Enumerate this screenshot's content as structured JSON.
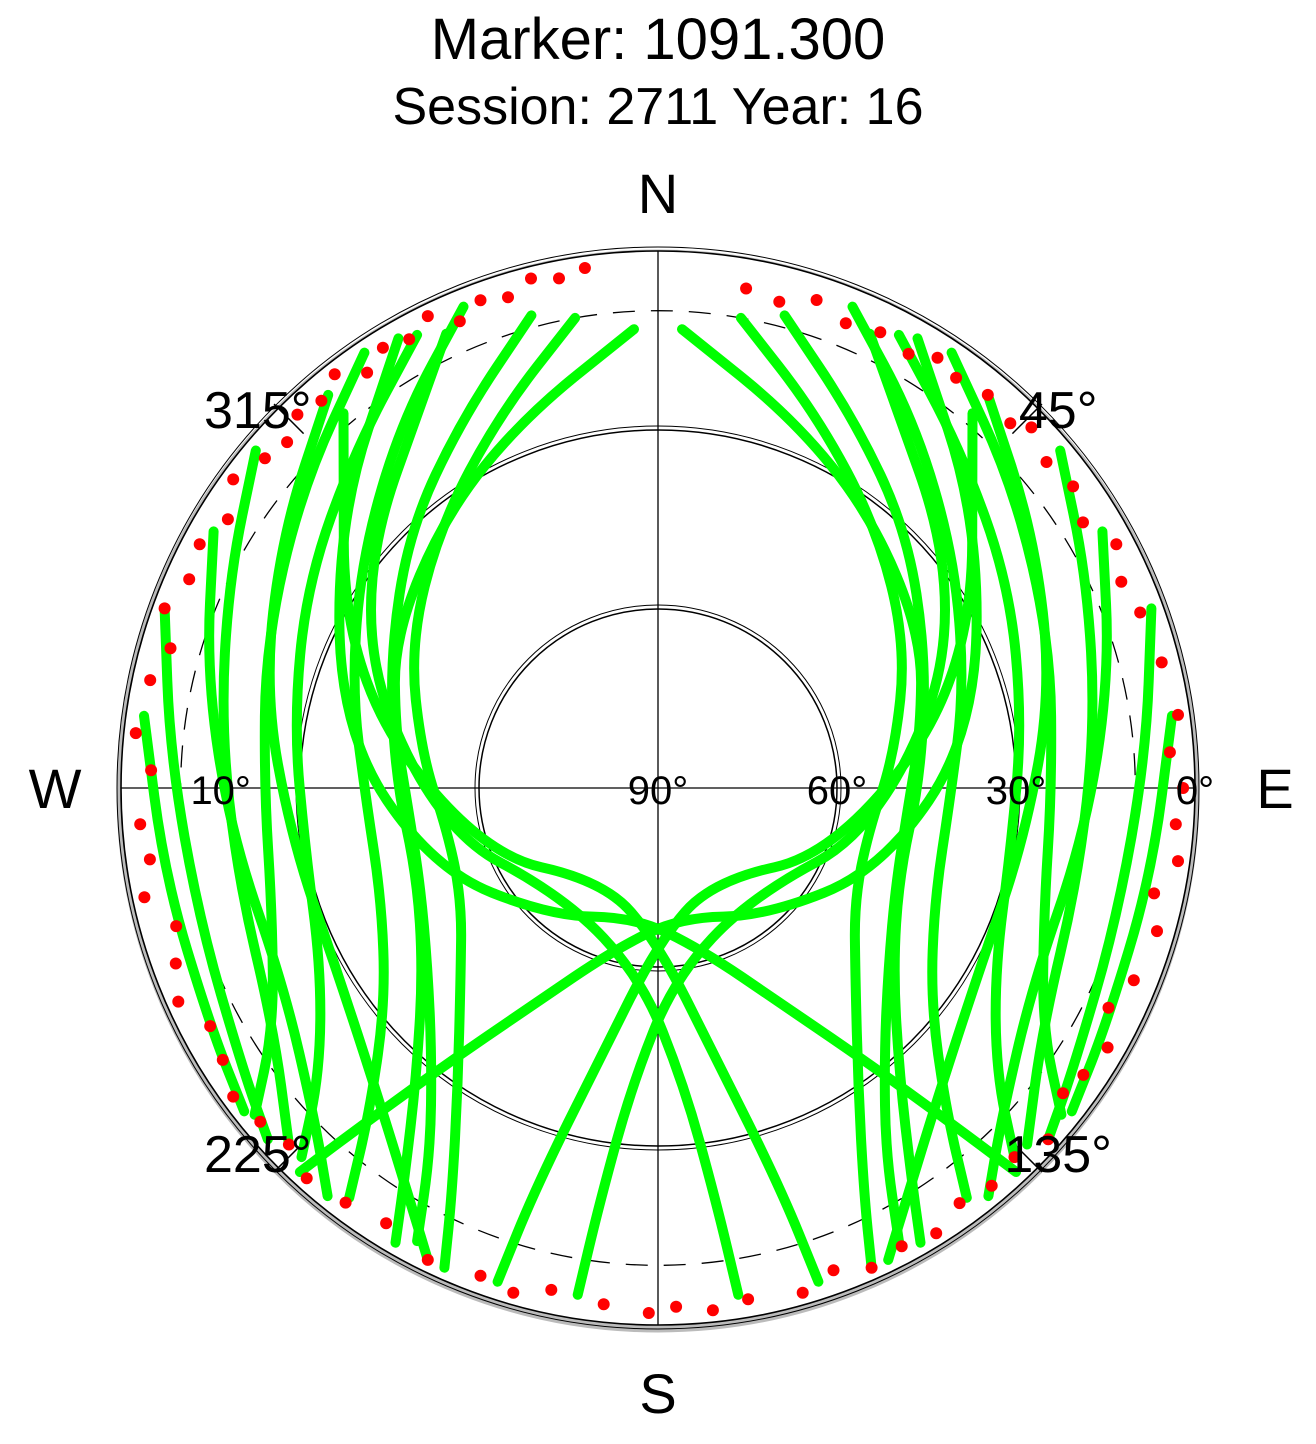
{
  "title": "Marker: 1091.300",
  "subtitle": "Session: 2711 Year: 16",
  "chart_data": {
    "type": "scatter",
    "projection": "polar-skyplot",
    "compass": {
      "north": "N",
      "east": "E",
      "south": "S",
      "west": "W"
    },
    "azimuth_labels": [
      {
        "az": 45,
        "text": "45°"
      },
      {
        "az": 135,
        "text": "135°"
      },
      {
        "az": 225,
        "text": "225°"
      },
      {
        "az": 315,
        "text": "315°"
      }
    ],
    "elevation_labels": [
      {
        "el": 90,
        "text": "90°"
      },
      {
        "el": 60,
        "text": "60°"
      },
      {
        "el": 30,
        "text": "30°"
      },
      {
        "el": 0,
        "text": "0°"
      },
      {
        "el": 10,
        "text": "10°"
      }
    ],
    "elevation_circles": [
      60,
      30,
      0
    ],
    "cutoff_elevation_dashed": 10,
    "colors": {
      "track": "#00ff00",
      "low": "#ff0000",
      "axis": "#000000",
      "shade": "#bbbbbb"
    },
    "series": [
      {
        "color": "#00ff00",
        "points": [
          [
            357,
            13
          ],
          [
            340,
            24
          ],
          [
            322,
            32
          ],
          [
            300,
            39
          ],
          [
            282,
            45
          ],
          [
            265,
            48
          ],
          [
            248,
            47
          ],
          [
            232,
            41
          ],
          [
            220,
            31
          ],
          [
            212,
            18
          ],
          [
            208,
            4
          ]
        ]
      },
      {
        "color": "#00ff00",
        "points": [
          [
            350,
            10
          ],
          [
            337,
            22
          ],
          [
            320,
            33
          ],
          [
            300,
            42
          ],
          [
            278,
            50
          ],
          [
            258,
            54
          ],
          [
            240,
            52
          ],
          [
            226,
            44
          ],
          [
            214,
            30
          ],
          [
            207,
            14
          ],
          [
            204,
            2
          ]
        ]
      },
      {
        "color": "#00ff00",
        "points": [
          [
            345,
            8
          ],
          [
            332,
            20
          ],
          [
            316,
            30
          ],
          [
            296,
            40
          ],
          [
            272,
            46
          ],
          [
            250,
            47
          ],
          [
            232,
            40
          ],
          [
            220,
            27
          ],
          [
            213,
            12
          ],
          [
            210,
            2
          ]
        ]
      },
      {
        "color": "#00ff00",
        "points": [
          [
            338,
            3
          ],
          [
            325,
            15
          ],
          [
            308,
            27
          ],
          [
            288,
            36
          ],
          [
            268,
            41
          ],
          [
            248,
            40
          ],
          [
            232,
            32
          ],
          [
            222,
            18
          ],
          [
            217,
            4
          ]
        ]
      },
      {
        "color": "#00ff00",
        "points": [
          [
            332,
            4
          ],
          [
            318,
            14
          ],
          [
            300,
            22
          ],
          [
            280,
            28
          ],
          [
            260,
            30
          ],
          [
            242,
            26
          ],
          [
            230,
            16
          ],
          [
            224,
            4
          ]
        ]
      },
      {
        "color": "#00ff00",
        "points": [
          [
            326,
            2
          ],
          [
            310,
            12
          ],
          [
            290,
            20
          ],
          [
            270,
            24
          ],
          [
            252,
            22
          ],
          [
            238,
            14
          ],
          [
            231,
            3
          ]
        ]
      },
      {
        "color": "#00ff00",
        "points": [
          [
            320,
            4
          ],
          [
            304,
            14
          ],
          [
            284,
            22
          ],
          [
            262,
            28
          ],
          [
            240,
            28
          ],
          [
            222,
            20
          ],
          [
            210,
            8
          ],
          [
            206,
            2
          ]
        ]
      },
      {
        "color": "#00ff00",
        "points": [
          [
            310,
            2
          ],
          [
            296,
            10
          ],
          [
            278,
            16
          ],
          [
            258,
            18
          ],
          [
            238,
            14
          ],
          [
            226,
            4
          ]
        ]
      },
      {
        "color": "#00ff00",
        "points": [
          [
            300,
            4
          ],
          [
            284,
            12
          ],
          [
            264,
            18
          ],
          [
            242,
            19
          ],
          [
            226,
            10
          ],
          [
            219,
            2
          ]
        ]
      },
      {
        "color": "#00ff00",
        "points": [
          [
            290,
            2
          ],
          [
            274,
            8
          ],
          [
            254,
            10
          ],
          [
            236,
            6
          ],
          [
            228,
            2
          ]
        ]
      },
      {
        "color": "#00ff00",
        "points": [
          [
            278,
            3
          ],
          [
            260,
            6
          ],
          [
            242,
            5
          ],
          [
            232,
            2
          ]
        ]
      },
      {
        "color": "#00ff00",
        "points": [
          [
            3,
            13
          ],
          [
            20,
            24
          ],
          [
            38,
            32
          ],
          [
            60,
            39
          ],
          [
            78,
            45
          ],
          [
            95,
            48
          ],
          [
            112,
            47
          ],
          [
            128,
            41
          ],
          [
            140,
            31
          ],
          [
            148,
            18
          ],
          [
            152,
            4
          ]
        ]
      },
      {
        "color": "#00ff00",
        "points": [
          [
            10,
            10
          ],
          [
            23,
            22
          ],
          [
            40,
            33
          ],
          [
            60,
            42
          ],
          [
            82,
            50
          ],
          [
            102,
            54
          ],
          [
            120,
            52
          ],
          [
            134,
            44
          ],
          [
            146,
            30
          ],
          [
            153,
            14
          ],
          [
            156,
            2
          ]
        ]
      },
      {
        "color": "#00ff00",
        "points": [
          [
            15,
            8
          ],
          [
            28,
            20
          ],
          [
            44,
            30
          ],
          [
            64,
            40
          ],
          [
            88,
            46
          ],
          [
            110,
            47
          ],
          [
            128,
            40
          ],
          [
            140,
            27
          ],
          [
            147,
            12
          ],
          [
            150,
            2
          ]
        ]
      },
      {
        "color": "#00ff00",
        "points": [
          [
            22,
            3
          ],
          [
            35,
            15
          ],
          [
            52,
            27
          ],
          [
            72,
            36
          ],
          [
            92,
            41
          ],
          [
            112,
            40
          ],
          [
            128,
            32
          ],
          [
            138,
            18
          ],
          [
            143,
            4
          ]
        ]
      },
      {
        "color": "#00ff00",
        "points": [
          [
            28,
            4
          ],
          [
            42,
            14
          ],
          [
            60,
            22
          ],
          [
            80,
            28
          ],
          [
            100,
            30
          ],
          [
            118,
            26
          ],
          [
            130,
            16
          ],
          [
            136,
            4
          ]
        ]
      },
      {
        "color": "#00ff00",
        "points": [
          [
            34,
            2
          ],
          [
            50,
            12
          ],
          [
            70,
            20
          ],
          [
            90,
            24
          ],
          [
            108,
            22
          ],
          [
            122,
            14
          ],
          [
            129,
            3
          ]
        ]
      },
      {
        "color": "#00ff00",
        "points": [
          [
            40,
            4
          ],
          [
            56,
            14
          ],
          [
            76,
            22
          ],
          [
            98,
            28
          ],
          [
            120,
            28
          ],
          [
            138,
            20
          ],
          [
            150,
            8
          ],
          [
            154,
            2
          ]
        ]
      },
      {
        "color": "#00ff00",
        "points": [
          [
            50,
            2
          ],
          [
            64,
            10
          ],
          [
            82,
            16
          ],
          [
            102,
            18
          ],
          [
            122,
            14
          ],
          [
            134,
            4
          ]
        ]
      },
      {
        "color": "#00ff00",
        "points": [
          [
            60,
            4
          ],
          [
            76,
            12
          ],
          [
            96,
            18
          ],
          [
            118,
            19
          ],
          [
            134,
            10
          ],
          [
            141,
            2
          ]
        ]
      },
      {
        "color": "#00ff00",
        "points": [
          [
            70,
            2
          ],
          [
            86,
            8
          ],
          [
            106,
            10
          ],
          [
            124,
            6
          ],
          [
            132,
            2
          ]
        ]
      },
      {
        "color": "#00ff00",
        "points": [
          [
            82,
            3
          ],
          [
            100,
            6
          ],
          [
            118,
            5
          ],
          [
            128,
            2
          ]
        ]
      },
      {
        "color": "#00ff00",
        "points": [
          [
            330,
            3
          ],
          [
            310,
            20
          ],
          [
            280,
            36
          ],
          [
            250,
            50
          ],
          [
            220,
            62
          ],
          [
            190,
            68
          ],
          [
            165,
            62
          ],
          [
            150,
            48
          ],
          [
            142,
            30
          ],
          [
            138,
            10
          ],
          [
            137,
            2
          ]
        ]
      },
      {
        "color": "#00ff00",
        "points": [
          [
            30,
            3
          ],
          [
            50,
            20
          ],
          [
            80,
            36
          ],
          [
            110,
            50
          ],
          [
            140,
            62
          ],
          [
            170,
            68
          ],
          [
            195,
            62
          ],
          [
            210,
            48
          ],
          [
            218,
            30
          ],
          [
            222,
            10
          ],
          [
            223,
            2
          ]
        ]
      },
      {
        "color": "#00ff00",
        "points": [
          [
            335,
            6
          ],
          [
            300,
            30
          ],
          [
            260,
            52
          ],
          [
            220,
            66
          ],
          [
            185,
            58
          ],
          [
            175,
            40
          ],
          [
            172,
            20
          ],
          [
            171,
            4
          ]
        ]
      },
      {
        "color": "#00ff00",
        "points": [
          [
            25,
            6
          ],
          [
            60,
            30
          ],
          [
            100,
            52
          ],
          [
            140,
            66
          ],
          [
            175,
            58
          ],
          [
            185,
            40
          ],
          [
            188,
            20
          ],
          [
            189,
            4
          ]
        ]
      },
      {
        "color": "#00ff00",
        "points": [
          [
            320,
            8
          ],
          [
            290,
            34
          ],
          [
            250,
            58
          ],
          [
            210,
            72
          ],
          [
            180,
            64
          ],
          [
            168,
            44
          ],
          [
            163,
            20
          ],
          [
            162,
            3
          ]
        ]
      },
      {
        "color": "#00ff00",
        "points": [
          [
            40,
            8
          ],
          [
            70,
            34
          ],
          [
            110,
            58
          ],
          [
            150,
            72
          ],
          [
            180,
            64
          ],
          [
            192,
            44
          ],
          [
            197,
            20
          ],
          [
            198,
            3
          ]
        ]
      }
    ],
    "low_points": [
      [
        352,
        2
      ],
      [
        349,
        3
      ],
      [
        346,
        2
      ],
      [
        343,
        4
      ],
      [
        340,
        3
      ],
      [
        337,
        5
      ],
      [
        334,
        2
      ],
      [
        331,
        4
      ],
      [
        328,
        3
      ],
      [
        325,
        5
      ],
      [
        322,
        2
      ],
      [
        319,
        4
      ],
      [
        316,
        3
      ],
      [
        313,
        5
      ],
      [
        310,
        4
      ],
      [
        306,
        2
      ],
      [
        302,
        5
      ],
      [
        298,
        3
      ],
      [
        294,
        4
      ],
      [
        290,
        2
      ],
      [
        286,
        5
      ],
      [
        282,
        3
      ],
      [
        276,
        2
      ],
      [
        272,
        5
      ],
      [
        266,
        3
      ],
      [
        262,
        4
      ],
      [
        258,
        2
      ],
      [
        254,
        6
      ],
      [
        250,
        4
      ],
      [
        246,
        2
      ],
      [
        242,
        5
      ],
      [
        238,
        4
      ],
      [
        234,
        2
      ],
      [
        230,
        3
      ],
      [
        226,
        4
      ],
      [
        222,
        2
      ],
      [
        217,
        3
      ],
      [
        212,
        4
      ],
      [
        206,
        2
      ],
      [
        200,
        3
      ],
      [
        196,
        2
      ],
      [
        192,
        4
      ],
      [
        186,
        3
      ],
      [
        181,
        2
      ],
      [
        178,
        3
      ],
      [
        174,
        2
      ],
      [
        170,
        3
      ],
      [
        164,
        2
      ],
      [
        160,
        4
      ],
      [
        156,
        2
      ],
      [
        152,
        3
      ],
      [
        148,
        2
      ],
      [
        144,
        4
      ],
      [
        140,
        3
      ],
      [
        136,
        4
      ],
      [
        132,
        2
      ],
      [
        127,
        5
      ],
      [
        124,
        4
      ],
      [
        120,
        3
      ],
      [
        116,
        6
      ],
      [
        112,
        4
      ],
      [
        106,
        3
      ],
      [
        102,
        5
      ],
      [
        98,
        2
      ],
      [
        94,
        3
      ],
      [
        90,
        2
      ],
      [
        86,
        4
      ],
      [
        82,
        2
      ],
      [
        76,
        3
      ],
      [
        70,
        4
      ],
      [
        66,
        5
      ],
      [
        62,
        3
      ],
      [
        58,
        6
      ],
      [
        54,
        4
      ],
      [
        50,
        5
      ],
      [
        46,
        3
      ],
      [
        44,
        5
      ],
      [
        40,
        4
      ],
      [
        36,
        5
      ],
      [
        33,
        4
      ],
      [
        30,
        6
      ],
      [
        26,
        5
      ],
      [
        22,
        6
      ],
      [
        18,
        4
      ],
      [
        14,
        6
      ],
      [
        10,
        5
      ]
    ]
  }
}
